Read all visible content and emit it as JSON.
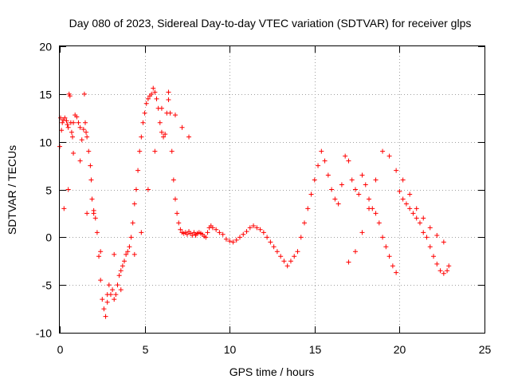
{
  "chart_data": {
    "type": "scatter",
    "title": "Day 080 of 2023, Sidereal Day-to-day VTEC variation (SDTVAR) for receiver glps",
    "xlabel": "GPS time / hours",
    "ylabel": "SDTVAR / TECUs",
    "xlim": [
      0,
      25
    ],
    "ylim": [
      -10,
      20
    ],
    "xticks": [
      "0",
      "5",
      "10",
      "15",
      "20",
      "25"
    ],
    "yticks": [
      "-10",
      "-5",
      "0",
      "5",
      "10",
      "15",
      "20"
    ],
    "grid": true,
    "marker": "+",
    "color": "#ff0000",
    "series": [
      {
        "name": "SDTVAR",
        "x": [
          0.0,
          0.1,
          0.15,
          0.2,
          0.3,
          0.4,
          0.45,
          0.5,
          0.55,
          0.6,
          0.65,
          0.7,
          0.75,
          0.8,
          0.9,
          1.0,
          1.1,
          1.2,
          1.3,
          1.4,
          1.45,
          1.5,
          1.55,
          1.6,
          1.7,
          1.8,
          1.85,
          1.9,
          2.0,
          2.1,
          2.2,
          2.3,
          2.4,
          2.5,
          2.6,
          2.7,
          2.8,
          2.9,
          3.0,
          3.1,
          3.2,
          3.3,
          3.4,
          3.5,
          3.6,
          3.7,
          3.8,
          3.9,
          4.0,
          4.1,
          4.2,
          4.3,
          4.4,
          4.5,
          4.6,
          4.7,
          4.8,
          4.9,
          5.0,
          5.1,
          5.2,
          5.3,
          5.4,
          5.5,
          5.6,
          5.7,
          5.8,
          5.9,
          6.0,
          6.1,
          6.2,
          6.3,
          6.4,
          6.5,
          6.6,
          6.7,
          6.8,
          6.9,
          7.0,
          7.1,
          7.2,
          7.3,
          7.4,
          7.5,
          7.6,
          7.7,
          7.8,
          7.9,
          8.0,
          8.1,
          8.2,
          8.3,
          8.4,
          8.5,
          8.6,
          8.7,
          8.8,
          8.9,
          9.0,
          9.2,
          9.4,
          9.6,
          9.8,
          10.0,
          10.2,
          10.4,
          10.6,
          10.8,
          11.0,
          11.2,
          11.4,
          11.6,
          11.8,
          12.0,
          12.2,
          12.4,
          12.6,
          12.8,
          13.0,
          13.2,
          13.4,
          13.6,
          13.8,
          14.0,
          14.2,
          14.4,
          14.6,
          14.8,
          15.0,
          15.2,
          15.4,
          15.6,
          15.8,
          16.0,
          16.2,
          16.4,
          16.6,
          16.8,
          17.0,
          17.2,
          17.4,
          17.6,
          17.8,
          18.0,
          18.2,
          18.4,
          18.6,
          18.8,
          19.0,
          19.2,
          19.4,
          19.6,
          19.8,
          20.0,
          20.2,
          20.4,
          20.6,
          20.8,
          21.0,
          21.2,
          21.4,
          21.6,
          21.8,
          22.0,
          22.2,
          22.4,
          22.6,
          22.8,
          22.9,
          0.05,
          0.25,
          0.5,
          0.8,
          1.2,
          1.6,
          2.0,
          2.4,
          2.8,
          3.2,
          3.6,
          4.4,
          4.8,
          5.2,
          5.6,
          6.0,
          6.4,
          6.8,
          7.2,
          7.6,
          8.0,
          17.0,
          17.4,
          17.8,
          18.2,
          18.6,
          19.0,
          19.4,
          19.8,
          20.2,
          20.6,
          21.0,
          21.4,
          21.8,
          22.2,
          22.6
        ],
        "y": [
          9.5,
          11.2,
          12.0,
          12.3,
          12.5,
          12.2,
          11.8,
          11.5,
          15.0,
          14.8,
          12.0,
          11.0,
          10.5,
          12.0,
          12.8,
          12.6,
          12.0,
          11.5,
          10.2,
          11.3,
          15.0,
          12.0,
          11.0,
          10.5,
          9.0,
          7.5,
          6.0,
          4.0,
          2.5,
          2.0,
          0.5,
          -2.0,
          -4.5,
          -6.5,
          -7.5,
          -8.3,
          -6.0,
          -5.0,
          -6.0,
          -5.5,
          -6.5,
          -6.0,
          -5.0,
          -4.0,
          -3.5,
          -3.0,
          -2.5,
          -1.8,
          -1.5,
          -1.0,
          0.0,
          1.5,
          3.5,
          5.0,
          7.0,
          9.0,
          10.5,
          12.0,
          13.0,
          14.0,
          14.5,
          14.8,
          15.0,
          15.6,
          15.2,
          14.5,
          13.5,
          12.0,
          11.0,
          10.5,
          10.8,
          13.0,
          14.4,
          13.0,
          9.0,
          6.0,
          4.0,
          2.5,
          1.5,
          0.8,
          0.5,
          0.4,
          0.5,
          0.3,
          0.6,
          0.4,
          0.2,
          0.5,
          0.3,
          0.4,
          0.5,
          0.4,
          0.3,
          0.1,
          0.0,
          0.5,
          1.0,
          1.2,
          1.0,
          0.8,
          0.5,
          0.3,
          -0.2,
          -0.4,
          -0.5,
          -0.3,
          0.0,
          0.3,
          0.6,
          1.0,
          1.2,
          1.0,
          0.8,
          0.5,
          0.0,
          -0.5,
          -1.0,
          -1.5,
          -2.0,
          -2.5,
          -3.0,
          -2.5,
          -2.0,
          -1.5,
          0.0,
          1.5,
          3.0,
          4.5,
          6.0,
          7.5,
          9.0,
          8.0,
          6.5,
          5.0,
          4.0,
          3.5,
          5.5,
          8.5,
          8.0,
          6.0,
          5.0,
          4.5,
          6.5,
          5.5,
          4.0,
          3.0,
          2.5,
          1.5,
          0.0,
          -1.0,
          -2.0,
          -3.0,
          -3.7,
          4.8,
          4.0,
          3.5,
          3.0,
          2.5,
          2.0,
          1.5,
          0.5,
          0.0,
          -1.0,
          -2.0,
          -2.8,
          -3.5,
          -3.8,
          -3.5,
          -3.0,
          12.5,
          3.0,
          5.0,
          8.8,
          8.0,
          2.5,
          2.8,
          -1.5,
          -6.8,
          -1.8,
          -5.5,
          -1.8,
          0.5,
          5.0,
          9.0,
          13.5,
          15.2,
          12.8,
          11.5,
          10.5,
          0.2,
          -2.6,
          -1.5,
          0.5,
          3.0,
          6.0,
          9.0,
          8.5,
          7.0,
          6.0,
          4.5,
          3.0,
          2.0,
          1.0,
          0.2,
          -0.5
        ]
      }
    ]
  }
}
